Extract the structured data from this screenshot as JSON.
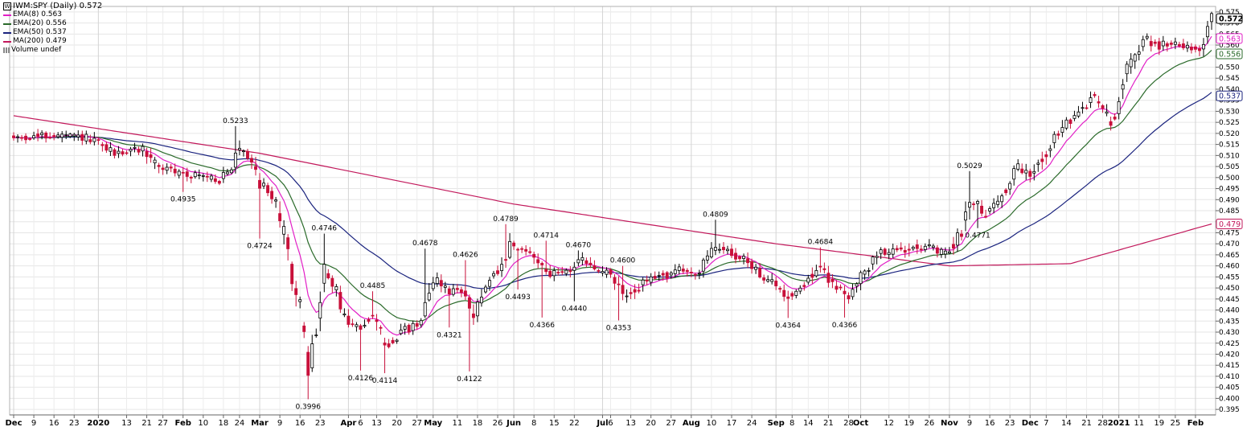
{
  "chart_data": {
    "type": "candlestick",
    "title": "IWM:SPY (Daily) 0.572",
    "symbol": "IWM:SPY",
    "period": "Daily",
    "last": "0.572",
    "legend_placement": "top-left",
    "grid": true,
    "legend": [
      {
        "label": "EMA(8) 0.563",
        "color": "#e21fc6"
      },
      {
        "label": "EMA(20) 0.556",
        "color": "#2a6a2a"
      },
      {
        "label": "EMA(50) 0.537",
        "color": "#1a237e"
      },
      {
        "label": "MA(200) 0.479",
        "color": "#c2185b"
      },
      {
        "label": "Volume undef",
        "color": "#888888"
      }
    ],
    "ylim": [
      0.3925,
      0.5775
    ],
    "y_ticks": [
      {
        "v": 0.395,
        "t": "0.395"
      },
      {
        "v": 0.4,
        "t": "0.400"
      },
      {
        "v": 0.405,
        "t": "0.405"
      },
      {
        "v": 0.41,
        "t": "0.410"
      },
      {
        "v": 0.415,
        "t": "0.415"
      },
      {
        "v": 0.42,
        "t": "0.420"
      },
      {
        "v": 0.425,
        "t": "0.425"
      },
      {
        "v": 0.43,
        "t": "0.430"
      },
      {
        "v": 0.435,
        "t": "0.435"
      },
      {
        "v": 0.44,
        "t": "0.440"
      },
      {
        "v": 0.445,
        "t": "0.445"
      },
      {
        "v": 0.45,
        "t": "0.450"
      },
      {
        "v": 0.455,
        "t": "0.455"
      },
      {
        "v": 0.46,
        "t": "0.460"
      },
      {
        "v": 0.465,
        "t": "0.465"
      },
      {
        "v": 0.47,
        "t": "0.470"
      },
      {
        "v": 0.475,
        "t": "0.475"
      },
      {
        "v": 0.48,
        "t": "0.480"
      },
      {
        "v": 0.485,
        "t": "0.485"
      },
      {
        "v": 0.49,
        "t": "0.490"
      },
      {
        "v": 0.495,
        "t": "0.495"
      },
      {
        "v": 0.5,
        "t": "0.500"
      },
      {
        "v": 0.505,
        "t": "0.505"
      },
      {
        "v": 0.51,
        "t": "0.510"
      },
      {
        "v": 0.515,
        "t": "0.515"
      },
      {
        "v": 0.52,
        "t": "0.520"
      },
      {
        "v": 0.525,
        "t": "0.525"
      },
      {
        "v": 0.53,
        "t": "0.530"
      },
      {
        "v": 0.535,
        "t": "0.535"
      },
      {
        "v": 0.54,
        "t": "0.540"
      },
      {
        "v": 0.545,
        "t": "0.545"
      },
      {
        "v": 0.55,
        "t": "0.550"
      },
      {
        "v": 0.555,
        "t": "0.555"
      },
      {
        "v": 0.56,
        "t": "0.560"
      },
      {
        "v": 0.565,
        "t": "0.565"
      },
      {
        "v": 0.57,
        "t": "0.570"
      },
      {
        "v": 0.575,
        "t": "0.575"
      }
    ],
    "price_tags": [
      {
        "v": 0.572,
        "t": "0.572",
        "color": "#000000",
        "bold": true
      },
      {
        "v": 0.563,
        "t": "0.563",
        "color": "#e21fc6",
        "bold": false
      },
      {
        "v": 0.556,
        "t": "0.556",
        "color": "#2a6a2a",
        "bold": false
      },
      {
        "v": 0.537,
        "t": "0.537",
        "color": "#1a237e",
        "bold": false
      },
      {
        "v": 0.479,
        "t": "0.479",
        "color": "#c2185b",
        "bold": false
      }
    ],
    "x_ticks": [
      {
        "t": "Dec",
        "d": "2019-12-02",
        "bold": true
      },
      {
        "t": "9",
        "d": "2019-12-09"
      },
      {
        "t": "16",
        "d": "2019-12-16"
      },
      {
        "t": "23",
        "d": "2019-12-23"
      },
      {
        "t": "2020",
        "d": "2020-01-02",
        "bold": true
      },
      {
        "t": "13",
        "d": "2020-01-13"
      },
      {
        "t": "21",
        "d": "2020-01-21"
      },
      {
        "t": "27",
        "d": "2020-01-27"
      },
      {
        "t": "Feb",
        "d": "2020-02-03",
        "bold": true
      },
      {
        "t": "10",
        "d": "2020-02-10"
      },
      {
        "t": "18",
        "d": "2020-02-18"
      },
      {
        "t": "24",
        "d": "2020-02-24"
      },
      {
        "t": "Mar",
        "d": "2020-03-02",
        "bold": true
      },
      {
        "t": "9",
        "d": "2020-03-09"
      },
      {
        "t": "16",
        "d": "2020-03-16"
      },
      {
        "t": "23",
        "d": "2020-03-23"
      },
      {
        "t": "Apr",
        "d": "2020-04-01",
        "bold": true
      },
      {
        "t": "6",
        "d": "2020-04-06"
      },
      {
        "t": "13",
        "d": "2020-04-13"
      },
      {
        "t": "20",
        "d": "2020-04-20"
      },
      {
        "t": "27",
        "d": "2020-04-27"
      },
      {
        "t": "May",
        "d": "2020-05-01",
        "bold": true
      },
      {
        "t": "11",
        "d": "2020-05-11"
      },
      {
        "t": "18",
        "d": "2020-05-18"
      },
      {
        "t": "26",
        "d": "2020-05-26"
      },
      {
        "t": "Jun",
        "d": "2020-06-01",
        "bold": true
      },
      {
        "t": "8",
        "d": "2020-06-08"
      },
      {
        "t": "15",
        "d": "2020-06-15"
      },
      {
        "t": "22",
        "d": "2020-06-22"
      },
      {
        "t": "Jul",
        "d": "2020-07-01",
        "bold": true
      },
      {
        "t": "6",
        "d": "2020-07-06"
      },
      {
        "t": "13",
        "d": "2020-07-13"
      },
      {
        "t": "20",
        "d": "2020-07-20"
      },
      {
        "t": "27",
        "d": "2020-07-27"
      },
      {
        "t": "Aug",
        "d": "2020-08-03",
        "bold": true
      },
      {
        "t": "10",
        "d": "2020-08-10"
      },
      {
        "t": "17",
        "d": "2020-08-17"
      },
      {
        "t": "24",
        "d": "2020-08-24"
      },
      {
        "t": "Sep",
        "d": "2020-09-01",
        "bold": true
      },
      {
        "t": "8",
        "d": "2020-09-08"
      },
      {
        "t": "14",
        "d": "2020-09-14"
      },
      {
        "t": "21",
        "d": "2020-09-21"
      },
      {
        "t": "28",
        "d": "2020-09-28"
      },
      {
        "t": "Oct",
        "d": "2020-10-01",
        "bold": true
      },
      {
        "t": "12",
        "d": "2020-10-12"
      },
      {
        "t": "19",
        "d": "2020-10-19"
      },
      {
        "t": "26",
        "d": "2020-10-26"
      },
      {
        "t": "Nov",
        "d": "2020-11-02",
        "bold": true
      },
      {
        "t": "9",
        "d": "2020-11-09"
      },
      {
        "t": "16",
        "d": "2020-11-16"
      },
      {
        "t": "23",
        "d": "2020-11-23"
      },
      {
        "t": "Dec",
        "d": "2020-12-01",
        "bold": true
      },
      {
        "t": "7",
        "d": "2020-12-07"
      },
      {
        "t": "14",
        "d": "2020-12-14"
      },
      {
        "t": "21",
        "d": "2020-12-21"
      },
      {
        "t": "28",
        "d": "2020-12-28"
      },
      {
        "t": "2021",
        "d": "2021-01-04",
        "bold": true
      },
      {
        "t": "11",
        "d": "2021-01-11"
      },
      {
        "t": "19",
        "d": "2021-01-19"
      },
      {
        "t": "25",
        "d": "2021-01-25"
      },
      {
        "t": "Feb",
        "d": "2021-02-01",
        "bold": true
      }
    ],
    "annotations": [
      {
        "t": "0.5233",
        "d": "2020-02-21",
        "v": 0.5233,
        "pos": "above"
      },
      {
        "t": "0.4935",
        "d": "2020-02-03",
        "v": 0.4935,
        "pos": "below"
      },
      {
        "t": "0.4724",
        "d": "2020-03-02",
        "v": 0.4724,
        "pos": "below"
      },
      {
        "t": "0.4746",
        "d": "2020-03-24",
        "v": 0.4746,
        "pos": "above"
      },
      {
        "t": "0.3996",
        "d": "2020-03-18",
        "v": 0.3996,
        "pos": "below"
      },
      {
        "t": "0.4485",
        "d": "2020-04-09",
        "v": 0.4485,
        "pos": "above"
      },
      {
        "t": "0.4126",
        "d": "2020-04-06",
        "v": 0.4126,
        "pos": "below"
      },
      {
        "t": "0.4114",
        "d": "2020-04-15",
        "v": 0.4114,
        "pos": "below"
      },
      {
        "t": "0.4678",
        "d": "2020-04-29",
        "v": 0.4678,
        "pos": "above"
      },
      {
        "t": "0.4626",
        "d": "2020-05-13",
        "v": 0.4626,
        "pos": "above"
      },
      {
        "t": "0.4321",
        "d": "2020-05-07",
        "v": 0.4321,
        "pos": "below"
      },
      {
        "t": "0.4122",
        "d": "2020-05-14",
        "v": 0.4122,
        "pos": "below"
      },
      {
        "t": "0.4789",
        "d": "2020-05-28",
        "v": 0.4789,
        "pos": "above"
      },
      {
        "t": "0.4493",
        "d": "2020-06-02",
        "v": 0.4493,
        "pos": "below"
      },
      {
        "t": "0.4714",
        "d": "2020-06-11",
        "v": 0.4714,
        "pos": "above"
      },
      {
        "t": "0.4366",
        "d": "2020-06-10",
        "v": 0.4366,
        "pos": "below"
      },
      {
        "t": "0.4670",
        "d": "2020-06-23",
        "v": 0.467,
        "pos": "above"
      },
      {
        "t": "0.4440",
        "d": "2020-06-22",
        "v": 0.444,
        "pos": "below"
      },
      {
        "t": "0.4600",
        "d": "2020-07-09",
        "v": 0.46,
        "pos": "above"
      },
      {
        "t": "0.4353",
        "d": "2020-07-08",
        "v": 0.4353,
        "pos": "below"
      },
      {
        "t": "0.4809",
        "d": "2020-08-11",
        "v": 0.4809,
        "pos": "above"
      },
      {
        "t": "0.4684",
        "d": "2020-09-17",
        "v": 0.4684,
        "pos": "above"
      },
      {
        "t": "0.4364",
        "d": "2020-09-04",
        "v": 0.4364,
        "pos": "below"
      },
      {
        "t": "0.4366",
        "d": "2020-09-25",
        "v": 0.4366,
        "pos": "below"
      },
      {
        "t": "0.5029",
        "d": "2020-11-09",
        "v": 0.5029,
        "pos": "above"
      },
      {
        "t": "0.4771",
        "d": "2020-11-11",
        "v": 0.4771,
        "pos": "below"
      }
    ],
    "anchors": [
      {
        "d": "2019-12-02",
        "v": 0.518
      },
      {
        "d": "2019-12-16",
        "v": 0.519
      },
      {
        "d": "2019-12-27",
        "v": 0.518
      },
      {
        "d": "2020-01-08",
        "v": 0.511
      },
      {
        "d": "2020-01-17",
        "v": 0.513
      },
      {
        "d": "2020-01-24",
        "v": 0.505
      },
      {
        "d": "2020-01-31",
        "v": 0.502
      },
      {
        "d": "2020-02-07",
        "v": 0.501
      },
      {
        "d": "2020-02-14",
        "v": 0.499
      },
      {
        "d": "2020-02-20",
        "v": 0.503
      },
      {
        "d": "2020-02-24",
        "v": 0.515
      },
      {
        "d": "2020-02-27",
        "v": 0.508
      },
      {
        "d": "2020-03-02",
        "v": 0.498
      },
      {
        "d": "2020-03-06",
        "v": 0.49
      },
      {
        "d": "2020-03-11",
        "v": 0.465
      },
      {
        "d": "2020-03-16",
        "v": 0.44
      },
      {
        "d": "2020-03-18",
        "v": 0.413
      },
      {
        "d": "2020-03-20",
        "v": 0.43
      },
      {
        "d": "2020-03-24",
        "v": 0.458
      },
      {
        "d": "2020-03-27",
        "v": 0.448
      },
      {
        "d": "2020-04-01",
        "v": 0.433
      },
      {
        "d": "2020-04-06",
        "v": 0.432
      },
      {
        "d": "2020-04-09",
        "v": 0.44
      },
      {
        "d": "2020-04-15",
        "v": 0.423
      },
      {
        "d": "2020-04-21",
        "v": 0.43
      },
      {
        "d": "2020-04-27",
        "v": 0.433
      },
      {
        "d": "2020-05-01",
        "v": 0.455
      },
      {
        "d": "2020-05-07",
        "v": 0.449
      },
      {
        "d": "2020-05-13",
        "v": 0.448
      },
      {
        "d": "2020-05-15",
        "v": 0.437
      },
      {
        "d": "2020-05-20",
        "v": 0.45
      },
      {
        "d": "2020-05-27",
        "v": 0.459
      },
      {
        "d": "2020-05-29",
        "v": 0.468
      },
      {
        "d": "2020-06-05",
        "v": 0.466
      },
      {
        "d": "2020-06-10",
        "v": 0.461
      },
      {
        "d": "2020-06-12",
        "v": 0.456
      },
      {
        "d": "2020-06-18",
        "v": 0.458
      },
      {
        "d": "2020-06-24",
        "v": 0.462
      },
      {
        "d": "2020-06-30",
        "v": 0.458
      },
      {
        "d": "2020-07-06",
        "v": 0.456
      },
      {
        "d": "2020-07-10",
        "v": 0.445
      },
      {
        "d": "2020-07-16",
        "v": 0.452
      },
      {
        "d": "2020-07-22",
        "v": 0.455
      },
      {
        "d": "2020-07-29",
        "v": 0.458
      },
      {
        "d": "2020-08-05",
        "v": 0.457
      },
      {
        "d": "2020-08-11",
        "v": 0.469
      },
      {
        "d": "2020-08-17",
        "v": 0.466
      },
      {
        "d": "2020-08-24",
        "v": 0.46
      },
      {
        "d": "2020-08-31",
        "v": 0.452
      },
      {
        "d": "2020-09-04",
        "v": 0.446
      },
      {
        "d": "2020-09-11",
        "v": 0.452
      },
      {
        "d": "2020-09-17",
        "v": 0.459
      },
      {
        "d": "2020-09-23",
        "v": 0.45
      },
      {
        "d": "2020-09-28",
        "v": 0.447
      },
      {
        "d": "2020-10-02",
        "v": 0.457
      },
      {
        "d": "2020-10-08",
        "v": 0.467
      },
      {
        "d": "2020-10-14",
        "v": 0.466
      },
      {
        "d": "2020-10-20",
        "v": 0.47
      },
      {
        "d": "2020-10-26",
        "v": 0.468
      },
      {
        "d": "2020-10-30",
        "v": 0.465
      },
      {
        "d": "2020-11-05",
        "v": 0.475
      },
      {
        "d": "2020-11-09",
        "v": 0.492
      },
      {
        "d": "2020-11-13",
        "v": 0.484
      },
      {
        "d": "2020-11-19",
        "v": 0.491
      },
      {
        "d": "2020-11-25",
        "v": 0.505
      },
      {
        "d": "2020-12-01",
        "v": 0.5
      },
      {
        "d": "2020-12-07",
        "v": 0.512
      },
      {
        "d": "2020-12-11",
        "v": 0.523
      },
      {
        "d": "2020-12-17",
        "v": 0.528
      },
      {
        "d": "2020-12-23",
        "v": 0.538
      },
      {
        "d": "2020-12-30",
        "v": 0.524
      },
      {
        "d": "2021-01-06",
        "v": 0.548
      },
      {
        "d": "2021-01-12",
        "v": 0.563
      },
      {
        "d": "2021-01-19",
        "v": 0.56
      },
      {
        "d": "2021-01-26",
        "v": 0.561
      },
      {
        "d": "2021-02-02",
        "v": 0.558
      },
      {
        "d": "2021-02-05",
        "v": 0.572
      }
    ],
    "ma200_anchors": [
      {
        "d": "2019-12-02",
        "v": 0.528
      },
      {
        "d": "2020-03-01",
        "v": 0.511
      },
      {
        "d": "2020-06-01",
        "v": 0.488
      },
      {
        "d": "2020-09-01",
        "v": 0.47
      },
      {
        "d": "2020-11-01",
        "v": 0.46
      },
      {
        "d": "2020-12-15",
        "v": 0.461
      },
      {
        "d": "2021-02-05",
        "v": 0.479
      }
    ]
  }
}
